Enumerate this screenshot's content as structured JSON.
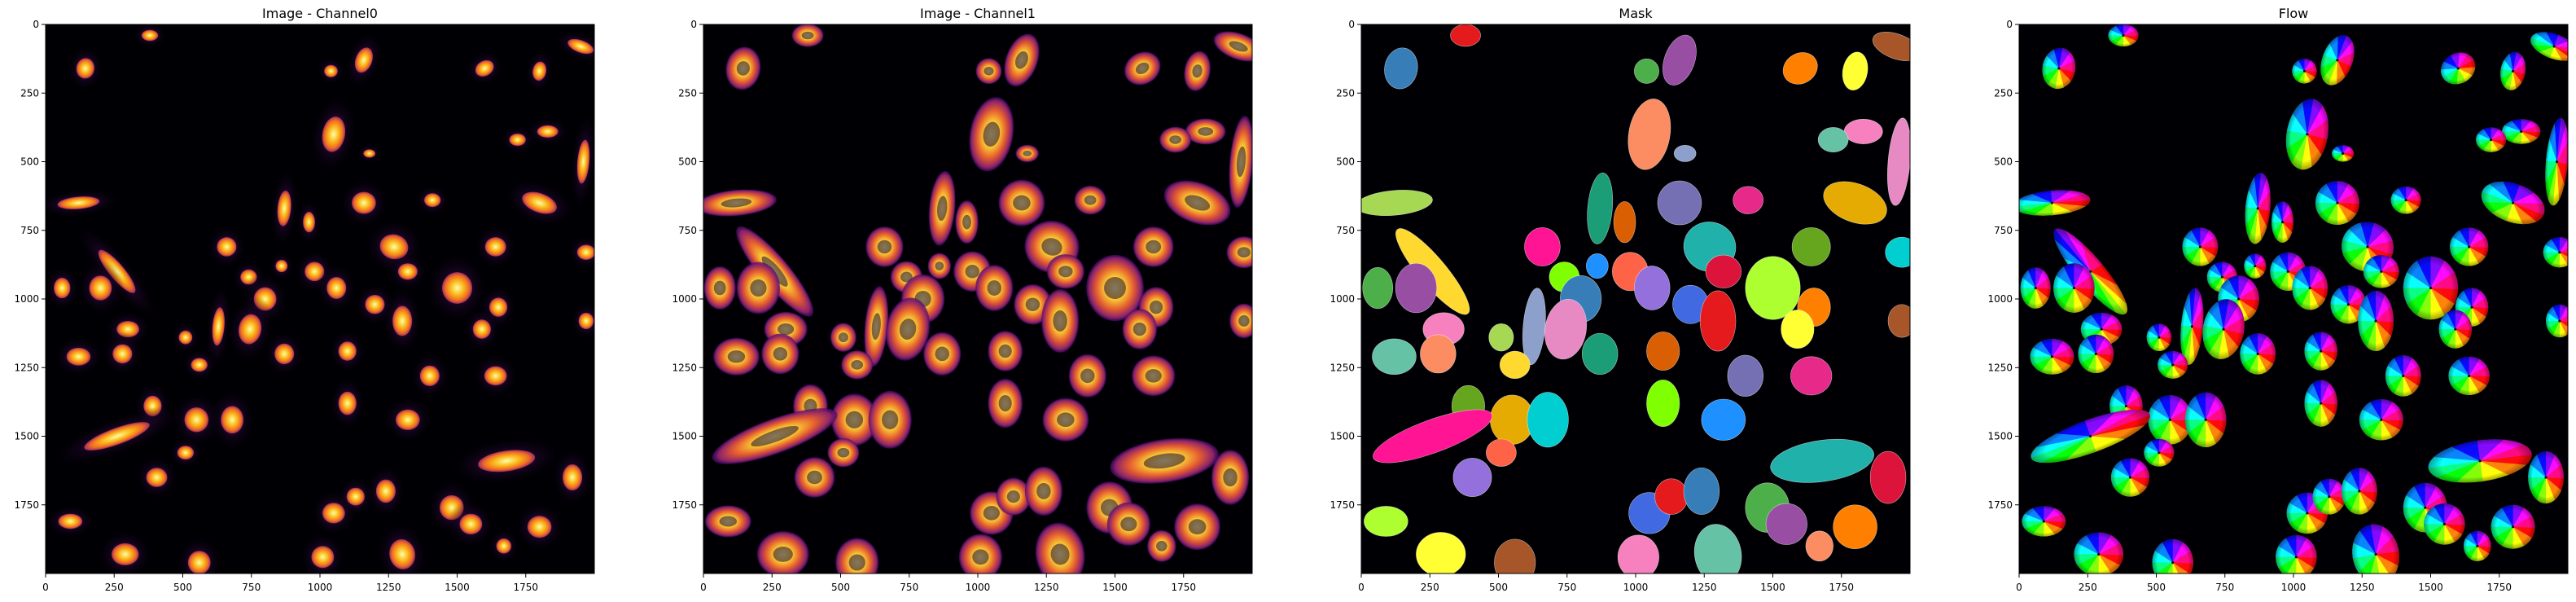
{
  "chart_data": [
    {
      "type": "heatmap",
      "title": "Image - Channel0",
      "colormap": "inferno",
      "xlim": [
        0,
        2000
      ],
      "ylim": [
        2000,
        0
      ],
      "xticks": [
        0,
        250,
        500,
        750,
        1000,
        1250,
        1500,
        1750
      ],
      "yticks": [
        0,
        250,
        500,
        750,
        1000,
        1250,
        1500,
        1750
      ],
      "content": "fluorescent nuclei"
    },
    {
      "type": "heatmap",
      "title": "Image - Channel1",
      "colormap": "inferno",
      "xlim": [
        0,
        2000
      ],
      "ylim": [
        2000,
        0
      ],
      "xticks": [
        0,
        250,
        500,
        750,
        1000,
        1250,
        1500,
        1750
      ],
      "yticks": [
        0,
        250,
        500,
        750,
        1000,
        1250,
        1500,
        1750
      ],
      "content": "fluorescent cytoplasm"
    },
    {
      "type": "heatmap",
      "title": "Mask",
      "colormap": "random label colors",
      "xlim": [
        0,
        2000
      ],
      "ylim": [
        2000,
        0
      ],
      "xticks": [
        0,
        250,
        500,
        750,
        1000,
        1250,
        1500,
        1750
      ],
      "yticks": [
        0,
        250,
        500,
        750,
        1000,
        1250,
        1500,
        1750
      ],
      "content": "labeled cell masks"
    },
    {
      "type": "heatmap",
      "title": "Flow",
      "colormap": "hsv flow",
      "xlim": [
        0,
        2000
      ],
      "ylim": [
        2000,
        0
      ],
      "xticks": [
        0,
        250,
        500,
        750,
        1000,
        1250,
        1500,
        1750
      ],
      "yticks": [
        0,
        250,
        500,
        750,
        1000,
        1250,
        1500,
        1750
      ],
      "content": "cell flow fields"
    }
  ],
  "cells": [
    {
      "x": 380,
      "y": 40,
      "rx": 55,
      "ry": 40,
      "a": 0
    },
    {
      "x": 145,
      "y": 160,
      "rx": 60,
      "ry": 75,
      "a": 10
    },
    {
      "x": 1040,
      "y": 170,
      "rx": 45,
      "ry": 45,
      "a": 0
    },
    {
      "x": 1160,
      "y": 130,
      "rx": 55,
      "ry": 95,
      "a": 20
    },
    {
      "x": 1600,
      "y": 160,
      "rx": 65,
      "ry": 55,
      "a": -30
    },
    {
      "x": 1800,
      "y": 170,
      "rx": 45,
      "ry": 70,
      "a": 10
    },
    {
      "x": 1950,
      "y": 80,
      "rx": 90,
      "ry": 45,
      "a": 20
    },
    {
      "x": 1830,
      "y": 390,
      "rx": 70,
      "ry": 45,
      "a": 0
    },
    {
      "x": 1720,
      "y": 420,
      "rx": 55,
      "ry": 45,
      "a": 0
    },
    {
      "x": 1050,
      "y": 400,
      "rx": 75,
      "ry": 130,
      "a": 10
    },
    {
      "x": 1180,
      "y": 470,
      "rx": 40,
      "ry": 30,
      "a": 0
    },
    {
      "x": 1960,
      "y": 500,
      "rx": 40,
      "ry": 160,
      "a": 5
    },
    {
      "x": 120,
      "y": 650,
      "rx": 140,
      "ry": 45,
      "a": -5
    },
    {
      "x": 260,
      "y": 900,
      "rx": 50,
      "ry": 200,
      "a": -40
    },
    {
      "x": 870,
      "y": 670,
      "rx": 45,
      "ry": 130,
      "a": 5
    },
    {
      "x": 960,
      "y": 720,
      "rx": 40,
      "ry": 75,
      "a": 0
    },
    {
      "x": 1160,
      "y": 650,
      "rx": 80,
      "ry": 80,
      "a": 0
    },
    {
      "x": 1410,
      "y": 640,
      "rx": 55,
      "ry": 50,
      "a": 0
    },
    {
      "x": 1640,
      "y": 810,
      "rx": 70,
      "ry": 70,
      "a": 0
    },
    {
      "x": 1800,
      "y": 650,
      "rx": 120,
      "ry": 70,
      "a": 20
    },
    {
      "x": 1970,
      "y": 830,
      "rx": 60,
      "ry": 55,
      "a": 0
    },
    {
      "x": 660,
      "y": 810,
      "rx": 65,
      "ry": 70,
      "a": 0
    },
    {
      "x": 740,
      "y": 920,
      "rx": 55,
      "ry": 55,
      "a": 0
    },
    {
      "x": 860,
      "y": 880,
      "rx": 40,
      "ry": 45,
      "a": 0
    },
    {
      "x": 980,
      "y": 900,
      "rx": 65,
      "ry": 70,
      "a": 0
    },
    {
      "x": 1060,
      "y": 960,
      "rx": 65,
      "ry": 80,
      "a": 0
    },
    {
      "x": 1270,
      "y": 810,
      "rx": 95,
      "ry": 90,
      "a": 15
    },
    {
      "x": 1320,
      "y": 900,
      "rx": 65,
      "ry": 60,
      "a": 0
    },
    {
      "x": 1500,
      "y": 960,
      "rx": 100,
      "ry": 115,
      "a": 0
    },
    {
      "x": 1200,
      "y": 1020,
      "rx": 65,
      "ry": 70,
      "a": 0
    },
    {
      "x": 1300,
      "y": 1080,
      "rx": 65,
      "ry": 110,
      "a": 0
    },
    {
      "x": 800,
      "y": 1000,
      "rx": 75,
      "ry": 85,
      "a": 0
    },
    {
      "x": 60,
      "y": 960,
      "rx": 55,
      "ry": 75,
      "a": 0
    },
    {
      "x": 200,
      "y": 960,
      "rx": 75,
      "ry": 90,
      "a": 0
    },
    {
      "x": 1650,
      "y": 1030,
      "rx": 60,
      "ry": 70,
      "a": 0
    },
    {
      "x": 1590,
      "y": 1110,
      "rx": 60,
      "ry": 70,
      "a": 0
    },
    {
      "x": 1970,
      "y": 1080,
      "rx": 50,
      "ry": 60,
      "a": 0
    },
    {
      "x": 300,
      "y": 1110,
      "rx": 75,
      "ry": 60,
      "a": 0
    },
    {
      "x": 120,
      "y": 1210,
      "rx": 80,
      "ry": 65,
      "a": 0
    },
    {
      "x": 280,
      "y": 1200,
      "rx": 65,
      "ry": 70,
      "a": 0
    },
    {
      "x": 630,
      "y": 1100,
      "rx": 40,
      "ry": 140,
      "a": 5
    },
    {
      "x": 745,
      "y": 1110,
      "rx": 75,
      "ry": 110,
      "a": 10
    },
    {
      "x": 510,
      "y": 1140,
      "rx": 45,
      "ry": 50,
      "a": 0
    },
    {
      "x": 560,
      "y": 1240,
      "rx": 55,
      "ry": 50,
      "a": 0
    },
    {
      "x": 870,
      "y": 1200,
      "rx": 65,
      "ry": 75,
      "a": 0
    },
    {
      "x": 1100,
      "y": 1190,
      "rx": 60,
      "ry": 70,
      "a": 0
    },
    {
      "x": 1400,
      "y": 1280,
      "rx": 65,
      "ry": 75,
      "a": 0
    },
    {
      "x": 1640,
      "y": 1280,
      "rx": 75,
      "ry": 70,
      "a": 0
    },
    {
      "x": 390,
      "y": 1390,
      "rx": 60,
      "ry": 75,
      "a": 0
    },
    {
      "x": 550,
      "y": 1440,
      "rx": 80,
      "ry": 90,
      "a": 0
    },
    {
      "x": 680,
      "y": 1440,
      "rx": 75,
      "ry": 100,
      "a": 0
    },
    {
      "x": 260,
      "y": 1500,
      "rx": 230,
      "ry": 60,
      "a": -20
    },
    {
      "x": 1100,
      "y": 1380,
      "rx": 60,
      "ry": 85,
      "a": 0
    },
    {
      "x": 1320,
      "y": 1440,
      "rx": 80,
      "ry": 75,
      "a": 0
    },
    {
      "x": 510,
      "y": 1560,
      "rx": 55,
      "ry": 50,
      "a": 0
    },
    {
      "x": 405,
      "y": 1650,
      "rx": 70,
      "ry": 70,
      "a": 0
    },
    {
      "x": 1680,
      "y": 1590,
      "rx": 190,
      "ry": 75,
      "a": -8
    },
    {
      "x": 1920,
      "y": 1650,
      "rx": 65,
      "ry": 95,
      "a": 0
    },
    {
      "x": 90,
      "y": 1810,
      "rx": 80,
      "ry": 55,
      "a": 0
    },
    {
      "x": 1050,
      "y": 1780,
      "rx": 75,
      "ry": 75,
      "a": 0
    },
    {
      "x": 1130,
      "y": 1720,
      "rx": 60,
      "ry": 65,
      "a": 0
    },
    {
      "x": 1240,
      "y": 1700,
      "rx": 65,
      "ry": 85,
      "a": 0
    },
    {
      "x": 1480,
      "y": 1760,
      "rx": 80,
      "ry": 90,
      "a": 0
    },
    {
      "x": 1550,
      "y": 1820,
      "rx": 75,
      "ry": 75,
      "a": 0
    },
    {
      "x": 1800,
      "y": 1830,
      "rx": 80,
      "ry": 80,
      "a": 0
    },
    {
      "x": 290,
      "y": 1930,
      "rx": 90,
      "ry": 80,
      "a": 0
    },
    {
      "x": 560,
      "y": 1960,
      "rx": 75,
      "ry": 85,
      "a": 0
    },
    {
      "x": 1010,
      "y": 1940,
      "rx": 75,
      "ry": 80,
      "a": 0
    },
    {
      "x": 1300,
      "y": 1930,
      "rx": 85,
      "ry": 110,
      "a": -10
    },
    {
      "x": 1670,
      "y": 1900,
      "rx": 50,
      "ry": 55,
      "a": 0
    }
  ],
  "mask_colors": [
    "#e41a1c",
    "#377eb8",
    "#4daf4a",
    "#984ea3",
    "#ff7f00",
    "#ffff33",
    "#a65628",
    "#f781bf",
    "#66c2a5",
    "#fc8d62",
    "#8da0cb",
    "#e78ac3",
    "#a6d854",
    "#ffd92f",
    "#1b9e77",
    "#d95f02",
    "#7570b3",
    "#e7298a",
    "#66a61e",
    "#e6ab02",
    "#00ced1",
    "#ff1493",
    "#7fff00",
    "#1e90ff",
    "#ff6347",
    "#9370db",
    "#20b2aa",
    "#dc143c",
    "#adff2f",
    "#4169e1"
  ]
}
